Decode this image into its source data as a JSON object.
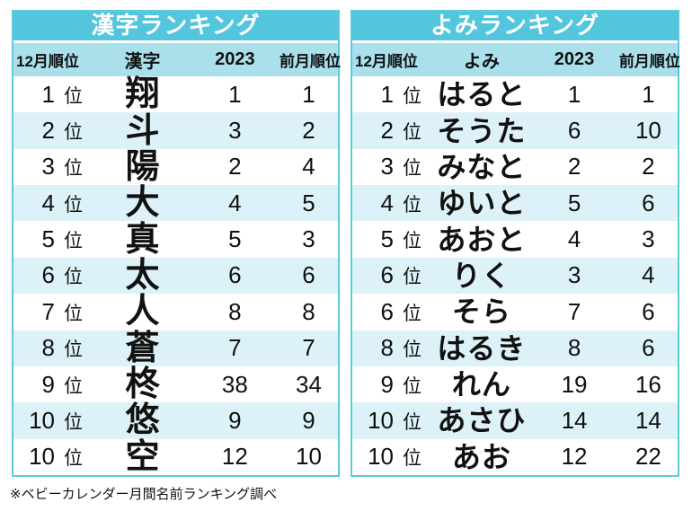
{
  "colors": {
    "title_bar_bg": "#53c6dd",
    "table_border": "#5fc9dc",
    "subheader_bg": "#a9e0ec",
    "alt_row_bg": "#ddf2f8",
    "row_bg": "#ffffff",
    "title_text": "#ffffff",
    "body_text": "#111111"
  },
  "footer": {
    "text": "※ベビーカレンダー月間名前ランキング調べ"
  },
  "tables": [
    {
      "title": "漢字ランキング",
      "headers": {
        "rank": "12月順位",
        "name": "漢字",
        "y2023": "2023",
        "prev": "前月順位"
      },
      "rank_suffix": "位",
      "rows": [
        {
          "rank": "1",
          "name": "翔",
          "y2023": "1",
          "prev": "1"
        },
        {
          "rank": "2",
          "name": "斗",
          "y2023": "3",
          "prev": "2"
        },
        {
          "rank": "3",
          "name": "陽",
          "y2023": "2",
          "prev": "4"
        },
        {
          "rank": "4",
          "name": "大",
          "y2023": "4",
          "prev": "5"
        },
        {
          "rank": "5",
          "name": "真",
          "y2023": "5",
          "prev": "3"
        },
        {
          "rank": "6",
          "name": "太",
          "y2023": "6",
          "prev": "6"
        },
        {
          "rank": "7",
          "name": "人",
          "y2023": "8",
          "prev": "8"
        },
        {
          "rank": "8",
          "name": "蒼",
          "y2023": "7",
          "prev": "7"
        },
        {
          "rank": "9",
          "name": "柊",
          "y2023": "38",
          "prev": "34"
        },
        {
          "rank": "10",
          "name": "悠",
          "y2023": "9",
          "prev": "9"
        },
        {
          "rank": "10",
          "name": "空",
          "y2023": "12",
          "prev": "10"
        }
      ]
    },
    {
      "title": "よみランキング",
      "headers": {
        "rank": "12月順位",
        "name": "よみ",
        "y2023": "2023",
        "prev": "前月順位"
      },
      "rank_suffix": "位",
      "rows": [
        {
          "rank": "1",
          "name": "はると",
          "y2023": "1",
          "prev": "1"
        },
        {
          "rank": "2",
          "name": "そうた",
          "y2023": "6",
          "prev": "10"
        },
        {
          "rank": "3",
          "name": "みなと",
          "y2023": "2",
          "prev": "2"
        },
        {
          "rank": "4",
          "name": "ゆいと",
          "y2023": "5",
          "prev": "6"
        },
        {
          "rank": "5",
          "name": "あおと",
          "y2023": "4",
          "prev": "3"
        },
        {
          "rank": "6",
          "name": "りく",
          "y2023": "3",
          "prev": "4"
        },
        {
          "rank": "6",
          "name": "そら",
          "y2023": "7",
          "prev": "6"
        },
        {
          "rank": "8",
          "name": "はるき",
          "y2023": "8",
          "prev": "6"
        },
        {
          "rank": "9",
          "name": "れん",
          "y2023": "19",
          "prev": "16"
        },
        {
          "rank": "10",
          "name": "あさひ",
          "y2023": "14",
          "prev": "14"
        },
        {
          "rank": "10",
          "name": "あお",
          "y2023": "12",
          "prev": "22"
        }
      ]
    }
  ],
  "chart_data": [
    {
      "type": "table",
      "title": "漢字ランキング",
      "columns": [
        "12月順位",
        "漢字",
        "2023",
        "前月順位"
      ],
      "rows": [
        [
          "1位",
          "翔",
          1,
          1
        ],
        [
          "2位",
          "斗",
          3,
          2
        ],
        [
          "3位",
          "陽",
          2,
          4
        ],
        [
          "4位",
          "大",
          4,
          5
        ],
        [
          "5位",
          "真",
          5,
          3
        ],
        [
          "6位",
          "太",
          6,
          6
        ],
        [
          "7位",
          "人",
          8,
          8
        ],
        [
          "8位",
          "蒼",
          7,
          7
        ],
        [
          "9位",
          "柊",
          38,
          34
        ],
        [
          "10位",
          "悠",
          9,
          9
        ],
        [
          "10位",
          "空",
          12,
          10
        ]
      ],
      "note": "※ベビーカレンダー月間名前ランキング調べ"
    },
    {
      "type": "table",
      "title": "よみランキング",
      "columns": [
        "12月順位",
        "よみ",
        "2023",
        "前月順位"
      ],
      "rows": [
        [
          "1位",
          "はると",
          1,
          1
        ],
        [
          "2位",
          "そうた",
          6,
          10
        ],
        [
          "3位",
          "みなと",
          2,
          2
        ],
        [
          "4位",
          "ゆいと",
          5,
          6
        ],
        [
          "5位",
          "あおと",
          4,
          3
        ],
        [
          "6位",
          "りく",
          3,
          4
        ],
        [
          "6位",
          "そら",
          7,
          6
        ],
        [
          "8位",
          "はるき",
          8,
          6
        ],
        [
          "9位",
          "れん",
          19,
          16
        ],
        [
          "10位",
          "あさひ",
          14,
          14
        ],
        [
          "10位",
          "あお",
          12,
          22
        ]
      ],
      "note": "※ベビーカレンダー月間名前ランキング調べ"
    }
  ]
}
